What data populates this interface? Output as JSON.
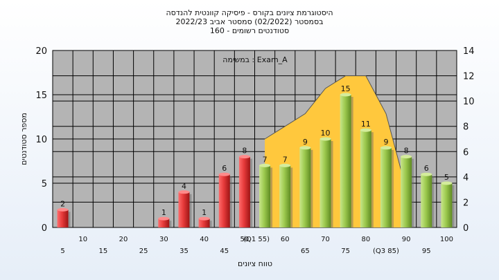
{
  "title_lines": [
    "היסטוגרמת ציונים בקורס - פיסיקה קוונטית להנדסה",
    "בסמסטר   (02/2022)  סמסטר אביב 2022/23",
    "סטודנטים רשומים - 160"
  ],
  "colors": {
    "plot_bg": "#b4b4b4",
    "curve_fill": "#ffc83d",
    "bar_fail": "#e53a3a",
    "bar_pass": "#9cc94e",
    "grid": "#000000"
  },
  "chart_data": {
    "type": "bar",
    "title": "היסטוגרמת ציונים בקורס - פיסיקה קוונטית להנדסה",
    "annotation": "במשימה : Exam_A",
    "xlabel": "טווח ציונים",
    "ylabel": "מספר סטודנטים",
    "ylim": [
      0,
      20
    ],
    "y_ticks": [
      0,
      5,
      10,
      15,
      20
    ],
    "y2lim": [
      0,
      14
    ],
    "y2_ticks": [
      0,
      2,
      4,
      6,
      8,
      10,
      12,
      14
    ],
    "grid": true,
    "x_tick_labels_upper": [
      "10",
      "20",
      "30",
      "40",
      "50",
      "(Q1 55)",
      "60",
      "70",
      "80",
      "90",
      "100"
    ],
    "x_tick_labels_lower": [
      "5",
      "15",
      "25",
      "35",
      "45",
      "65",
      "75",
      "(Q3 85)",
      "95"
    ],
    "bars": [
      {
        "x": 5,
        "value": 2,
        "group": "fail"
      },
      {
        "x": 30,
        "value": 1,
        "group": "fail"
      },
      {
        "x": 35,
        "value": 4,
        "group": "fail"
      },
      {
        "x": 40,
        "value": 1,
        "group": "fail"
      },
      {
        "x": 45,
        "value": 6,
        "group": "fail"
      },
      {
        "x": 50,
        "value": 8,
        "group": "fail"
      },
      {
        "x": 55,
        "value": 7,
        "group": "pass"
      },
      {
        "x": 60,
        "value": 7,
        "group": "pass"
      },
      {
        "x": 65,
        "value": 9,
        "group": "pass"
      },
      {
        "x": 70,
        "value": 10,
        "group": "pass"
      },
      {
        "x": 75,
        "value": 15,
        "group": "pass"
      },
      {
        "x": 80,
        "value": 11,
        "group": "pass"
      },
      {
        "x": 85,
        "value": 9,
        "group": "pass"
      },
      {
        "x": 90,
        "value": 8,
        "group": "pass"
      },
      {
        "x": 95,
        "value": 6,
        "group": "pass"
      },
      {
        "x": 100,
        "value": 5,
        "group": "pass"
      }
    ],
    "distribution_curve": {
      "x": [
        55,
        60,
        65,
        70,
        75,
        80,
        85,
        90
      ],
      "y2": [
        7,
        8,
        9,
        11,
        12,
        12,
        9,
        3
      ]
    }
  }
}
